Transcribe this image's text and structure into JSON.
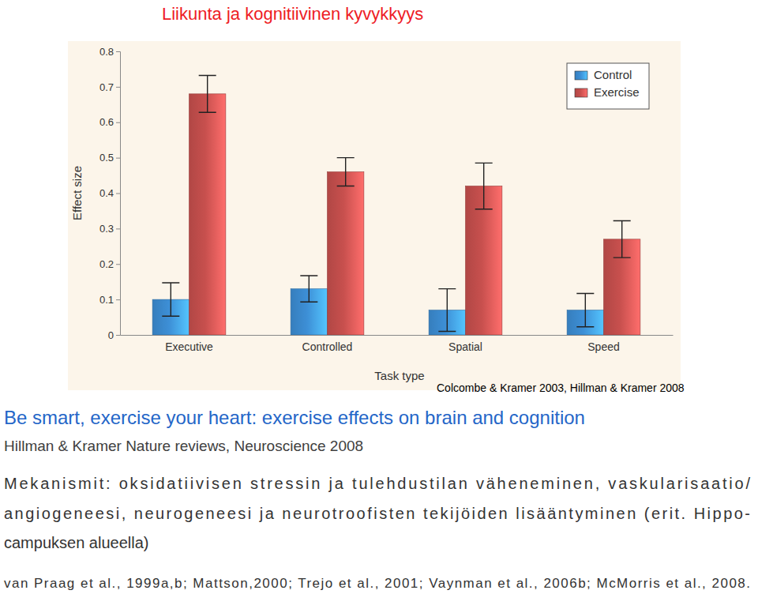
{
  "chart_data": {
    "type": "bar",
    "categories": [
      "Executive",
      "Controlled",
      "Spatial",
      "Speed"
    ],
    "series": [
      {
        "name": "Control",
        "color": "#3d8fd6",
        "values": [
          0.1,
          0.13,
          0.07,
          0.07
        ],
        "errors": [
          0.047,
          0.037,
          0.06,
          0.047
        ]
      },
      {
        "name": "Exercise",
        "color": "#c8504e",
        "values": [
          0.68,
          0.46,
          0.42,
          0.27
        ],
        "errors": [
          0.052,
          0.04,
          0.065,
          0.052
        ]
      }
    ],
    "x_label": "Task type",
    "y_label": "Effect size",
    "ylim": [
      0,
      0.8
    ],
    "yticks": [
      0,
      0.1,
      0.2,
      0.3,
      0.4,
      0.5,
      0.6,
      0.7,
      0.8
    ],
    "grid": false,
    "legend": "upper right"
  },
  "slide": {
    "title": "Liikunta ja kognitiivinen kyvykkyys",
    "source": "Colcombe & Kramer 2003, Hillman & Kramer 2008",
    "heading": "Be smart, exercise your heart: exercise effects on brain and cognition",
    "reference": "Hillman & Kramer Nature reviews, Neuroscience 2008",
    "mechanisms": [
      "Mekanismit: oksidatiivisen stressin ja tulehdustilan väheneminen, vaskularisaatio/",
      "angiogeneesi, neurogeneesi ja neurotroofisten tekijöiden lisääntyminen (erit. Hippo-",
      "campuksen alueella)"
    ],
    "citations": "van Praag et al., 1999a,b; Mattson,2000; Trejo et al., 2001; Vaynman et al., 2006b; McMorris et al., 2008."
  }
}
